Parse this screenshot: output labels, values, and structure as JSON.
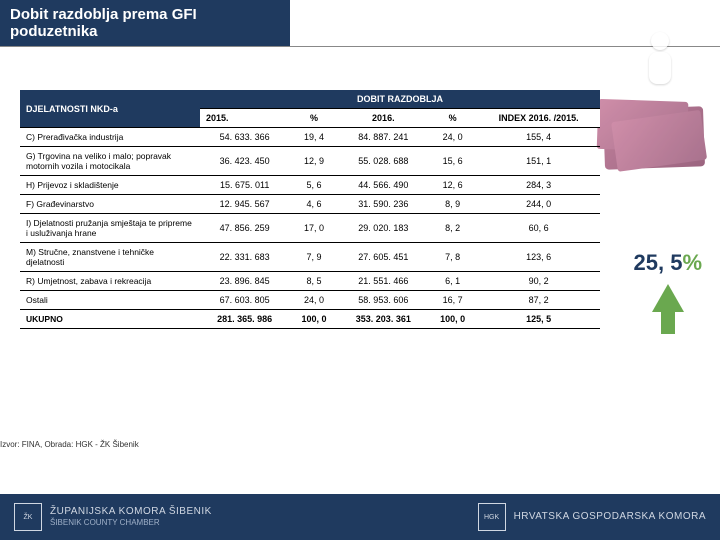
{
  "title": "Dobit razdoblja prema GFI poduzetnika",
  "table": {
    "activity_header": "DJELATNOSTI NKD-a",
    "profit_header": "DOBIT RAZDOBLJA",
    "columns": [
      "2015.",
      "%",
      "2016.",
      "%",
      "INDEX 2016. /2015."
    ],
    "rows": [
      {
        "activity": "C) Prerađivačka industrija",
        "v2015": "54. 633. 366",
        "p2015": "19, 4",
        "v2016": "84. 887. 241",
        "p2016": "24, 0",
        "index": "155, 4"
      },
      {
        "activity": "G) Trgovina na veliko i malo; popravak motornih vozila i motocikala",
        "v2015": "36. 423. 450",
        "p2015": "12, 9",
        "v2016": "55. 028. 688",
        "p2016": "15, 6",
        "index": "151, 1"
      },
      {
        "activity": "H) Prijevoz i skladištenje",
        "v2015": "15. 675. 011",
        "p2015": "5, 6",
        "v2016": "44. 566. 490",
        "p2016": "12, 6",
        "index": "284, 3"
      },
      {
        "activity": "F) Građevinarstvo",
        "v2015": "12. 945. 567",
        "p2015": "4, 6",
        "v2016": "31. 590. 236",
        "p2016": "8, 9",
        "index": "244, 0"
      },
      {
        "activity": "I) Djelatnosti pružanja smještaja te pripreme i usluživanja hrane",
        "v2015": "47. 856. 259",
        "p2015": "17, 0",
        "v2016": "29. 020. 183",
        "p2016": "8, 2",
        "index": "60, 6"
      },
      {
        "activity": "M) Stručne, znanstvene i tehničke djelatnosti",
        "v2015": "22. 331. 683",
        "p2015": "7, 9",
        "v2016": "27. 605. 451",
        "p2016": "7, 8",
        "index": "123, 6"
      },
      {
        "activity": "R) Umjetnost, zabava i rekreacija",
        "v2015": "23. 896. 845",
        "p2015": "8, 5",
        "v2016": "21. 551. 466",
        "p2016": "6, 1",
        "index": "90, 2"
      },
      {
        "activity": "Ostali",
        "v2015": "67. 603. 805",
        "p2015": "24, 0",
        "v2016": "58. 953. 606",
        "p2016": "16, 7",
        "index": "87, 2"
      }
    ],
    "total": {
      "activity": "UKUPNO",
      "v2015": "281. 365. 986",
      "p2015": "100, 0",
      "v2016": "353. 203. 361",
      "p2016": "100, 0",
      "index": "125, 5"
    }
  },
  "side_percent": {
    "value": "25, 5",
    "symbol": "%"
  },
  "source": "Izvor: FINA, Obrada: HGK - ŽK Šibenik",
  "footer": {
    "left_main": "ŽUPANIJSKA KOMORA ŠIBENIK",
    "left_sub": "ŠIBENIK COUNTY CHAMBER",
    "right": "HRVATSKA GOSPODARSKA KOMORA"
  },
  "colors": {
    "header_bg": "#1f3a5f",
    "accent_green": "#6aa84f"
  }
}
